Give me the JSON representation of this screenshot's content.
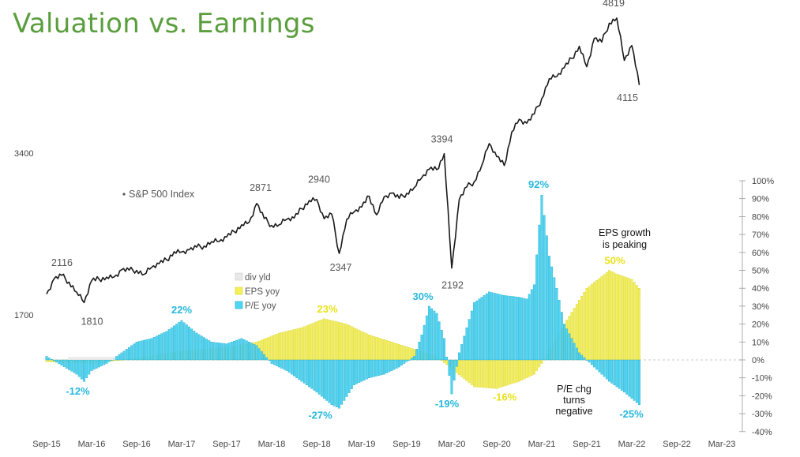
{
  "title": "Valuation vs. Earnings",
  "colors": {
    "title": "#5a9e3e",
    "index_line": "#1a1a1a",
    "pe_bar": "#4fd6f2",
    "pe_edge": "#1fa8cc",
    "eps_bar": "#f4f05a",
    "eps_edge": "#d8d230",
    "div_bar": "#e8e8e8",
    "pe_text": "#26b8dc",
    "eps_text": "#e9e21a"
  },
  "chart_data": {
    "type": "line",
    "x_ticks": [
      "Sep-15",
      "Mar-16",
      "Sep-16",
      "Mar-17",
      "Sep-17",
      "Mar-18",
      "Sep-18",
      "Mar-19",
      "Sep-19",
      "Mar-20",
      "Sep-20",
      "Mar-21",
      "Sep-21",
      "Mar-22",
      "Sep-22",
      "Mar-23"
    ],
    "left_axis": {
      "ticks": [
        1700,
        3400
      ]
    },
    "right_axis": {
      "ticks": [
        "100%",
        "90%",
        "80%",
        "70%",
        "60%",
        "50%",
        "40%",
        "30%",
        "20%",
        "10%",
        "0%",
        "-10%",
        "-20%",
        "-30%",
        "-40%"
      ],
      "range": [
        -40,
        100
      ]
    },
    "index_series": {
      "name": "S&P 500 Index",
      "x": [
        "2015-09",
        "2015-10",
        "2015-11",
        "2015-12",
        "2016-01",
        "2016-02",
        "2016-03",
        "2016-04",
        "2016-05",
        "2016-06",
        "2016-07",
        "2016-08",
        "2016-09",
        "2016-10",
        "2016-11",
        "2016-12",
        "2017-01",
        "2017-02",
        "2017-03",
        "2017-04",
        "2017-05",
        "2017-06",
        "2017-07",
        "2017-08",
        "2017-09",
        "2017-10",
        "2017-11",
        "2017-12",
        "2018-01",
        "2018-02",
        "2018-03",
        "2018-04",
        "2018-05",
        "2018-06",
        "2018-07",
        "2018-08",
        "2018-09",
        "2018-10",
        "2018-11",
        "2018-12",
        "2019-01",
        "2019-02",
        "2019-03",
        "2019-04",
        "2019-05",
        "2019-06",
        "2019-07",
        "2019-08",
        "2019-09",
        "2019-10",
        "2019-11",
        "2019-12",
        "2020-01",
        "2020-02",
        "2020-03",
        "2020-04",
        "2020-05",
        "2020-06",
        "2020-07",
        "2020-08",
        "2020-09",
        "2020-10",
        "2020-11",
        "2020-12",
        "2021-01",
        "2021-02",
        "2021-03",
        "2021-04",
        "2021-05",
        "2021-06",
        "2021-07",
        "2021-08",
        "2021-09",
        "2021-10",
        "2021-11",
        "2021-12",
        "2022-01",
        "2022-02",
        "2022-03",
        "2022-04"
      ],
      "values": [
        1920,
        2079,
        2116,
        2044,
        1940,
        1829,
        2060,
        2075,
        2097,
        2099,
        2174,
        2171,
        2168,
        2126,
        2199,
        2239,
        2279,
        2364,
        2363,
        2384,
        2412,
        2423,
        2470,
        2472,
        2519,
        2575,
        2648,
        2674,
        2871,
        2714,
        2640,
        2648,
        2705,
        2718,
        2816,
        2902,
        2914,
        2711,
        2760,
        2347,
        2704,
        2784,
        2834,
        2946,
        2752,
        2942,
        2980,
        2926,
        2977,
        3038,
        3141,
        3231,
        3226,
        3394,
        2192,
        2912,
        3044,
        3100,
        3271,
        3500,
        3363,
        3270,
        3622,
        3756,
        3714,
        3811,
        3973,
        4181,
        4204,
        4298,
        4395,
        4523,
        4308,
        4605,
        4567,
        4766,
        4819,
        4374,
        4530,
        4115
      ]
    },
    "pe_yoy": {
      "name": "P/E yoy",
      "x": [
        "2015-09",
        "2015-11",
        "2016-01",
        "2016-02",
        "2016-03",
        "2016-05",
        "2016-07",
        "2016-09",
        "2016-11",
        "2017-01",
        "2017-03",
        "2017-05",
        "2017-07",
        "2017-09",
        "2017-11",
        "2018-01",
        "2018-03",
        "2018-05",
        "2018-07",
        "2018-09",
        "2018-11",
        "2018-12",
        "2019-02",
        "2019-04",
        "2019-06",
        "2019-08",
        "2019-10",
        "2019-11",
        "2019-12",
        "2020-01",
        "2020-02",
        "2020-03",
        "2020-04",
        "2020-06",
        "2020-08",
        "2020-10",
        "2020-12",
        "2021-01",
        "2021-02",
        "2021-03",
        "2021-04",
        "2021-05",
        "2021-06",
        "2021-08",
        "2021-10",
        "2021-12",
        "2022-02",
        "2022-04"
      ],
      "values": [
        2,
        -3,
        -8,
        -12,
        -6,
        -2,
        4,
        10,
        12,
        16,
        22,
        15,
        10,
        9,
        12,
        8,
        -2,
        -6,
        -12,
        -18,
        -25,
        -27,
        -14,
        -10,
        -8,
        -4,
        2,
        14,
        30,
        26,
        12,
        -19,
        4,
        32,
        38,
        36,
        35,
        34,
        42,
        92,
        58,
        40,
        20,
        4,
        -4,
        -12,
        -18,
        -25
      ]
    },
    "eps_yoy": {
      "name": "EPS yoy",
      "x": [
        "2015-09",
        "2016-03",
        "2016-09",
        "2017-03",
        "2017-09",
        "2018-01",
        "2018-04",
        "2018-07",
        "2018-10",
        "2019-01",
        "2019-04",
        "2019-07",
        "2019-10",
        "2020-01",
        "2020-03",
        "2020-06",
        "2020-09",
        "2020-12",
        "2021-02",
        "2021-03",
        "2021-06",
        "2021-09",
        "2021-12",
        "2022-01",
        "2022-03",
        "2022-04"
      ],
      "values": [
        -1,
        -2,
        1,
        5,
        7,
        10,
        15,
        18,
        23,
        20,
        14,
        10,
        6,
        2,
        -5,
        -15,
        -16,
        -12,
        -8,
        -2,
        20,
        40,
        50,
        48,
        45,
        40
      ]
    },
    "div_yld": {
      "name": "div yld"
    },
    "annotations": [
      {
        "label": "2116"
      },
      {
        "label": "1810"
      },
      {
        "label": "2871"
      },
      {
        "label": "2940"
      },
      {
        "label": "2347"
      },
      {
        "label": "3394"
      },
      {
        "label": "2192"
      },
      {
        "label": "4819"
      },
      {
        "label": "4115"
      },
      {
        "label": "22%"
      },
      {
        "label": "-12%"
      },
      {
        "label": "23%"
      },
      {
        "label": "-27%"
      },
      {
        "label": "30%"
      },
      {
        "label": "-19%"
      },
      {
        "label": "-16%"
      },
      {
        "label": "92%"
      },
      {
        "label": "50%"
      },
      {
        "label": "-25%"
      }
    ],
    "notes": {
      "eps_peaking": [
        "EPS growth",
        "is peaking"
      ],
      "pe_negative": [
        "P/E chg",
        "turns",
        "negative"
      ]
    },
    "legend_placement": "center-left"
  }
}
